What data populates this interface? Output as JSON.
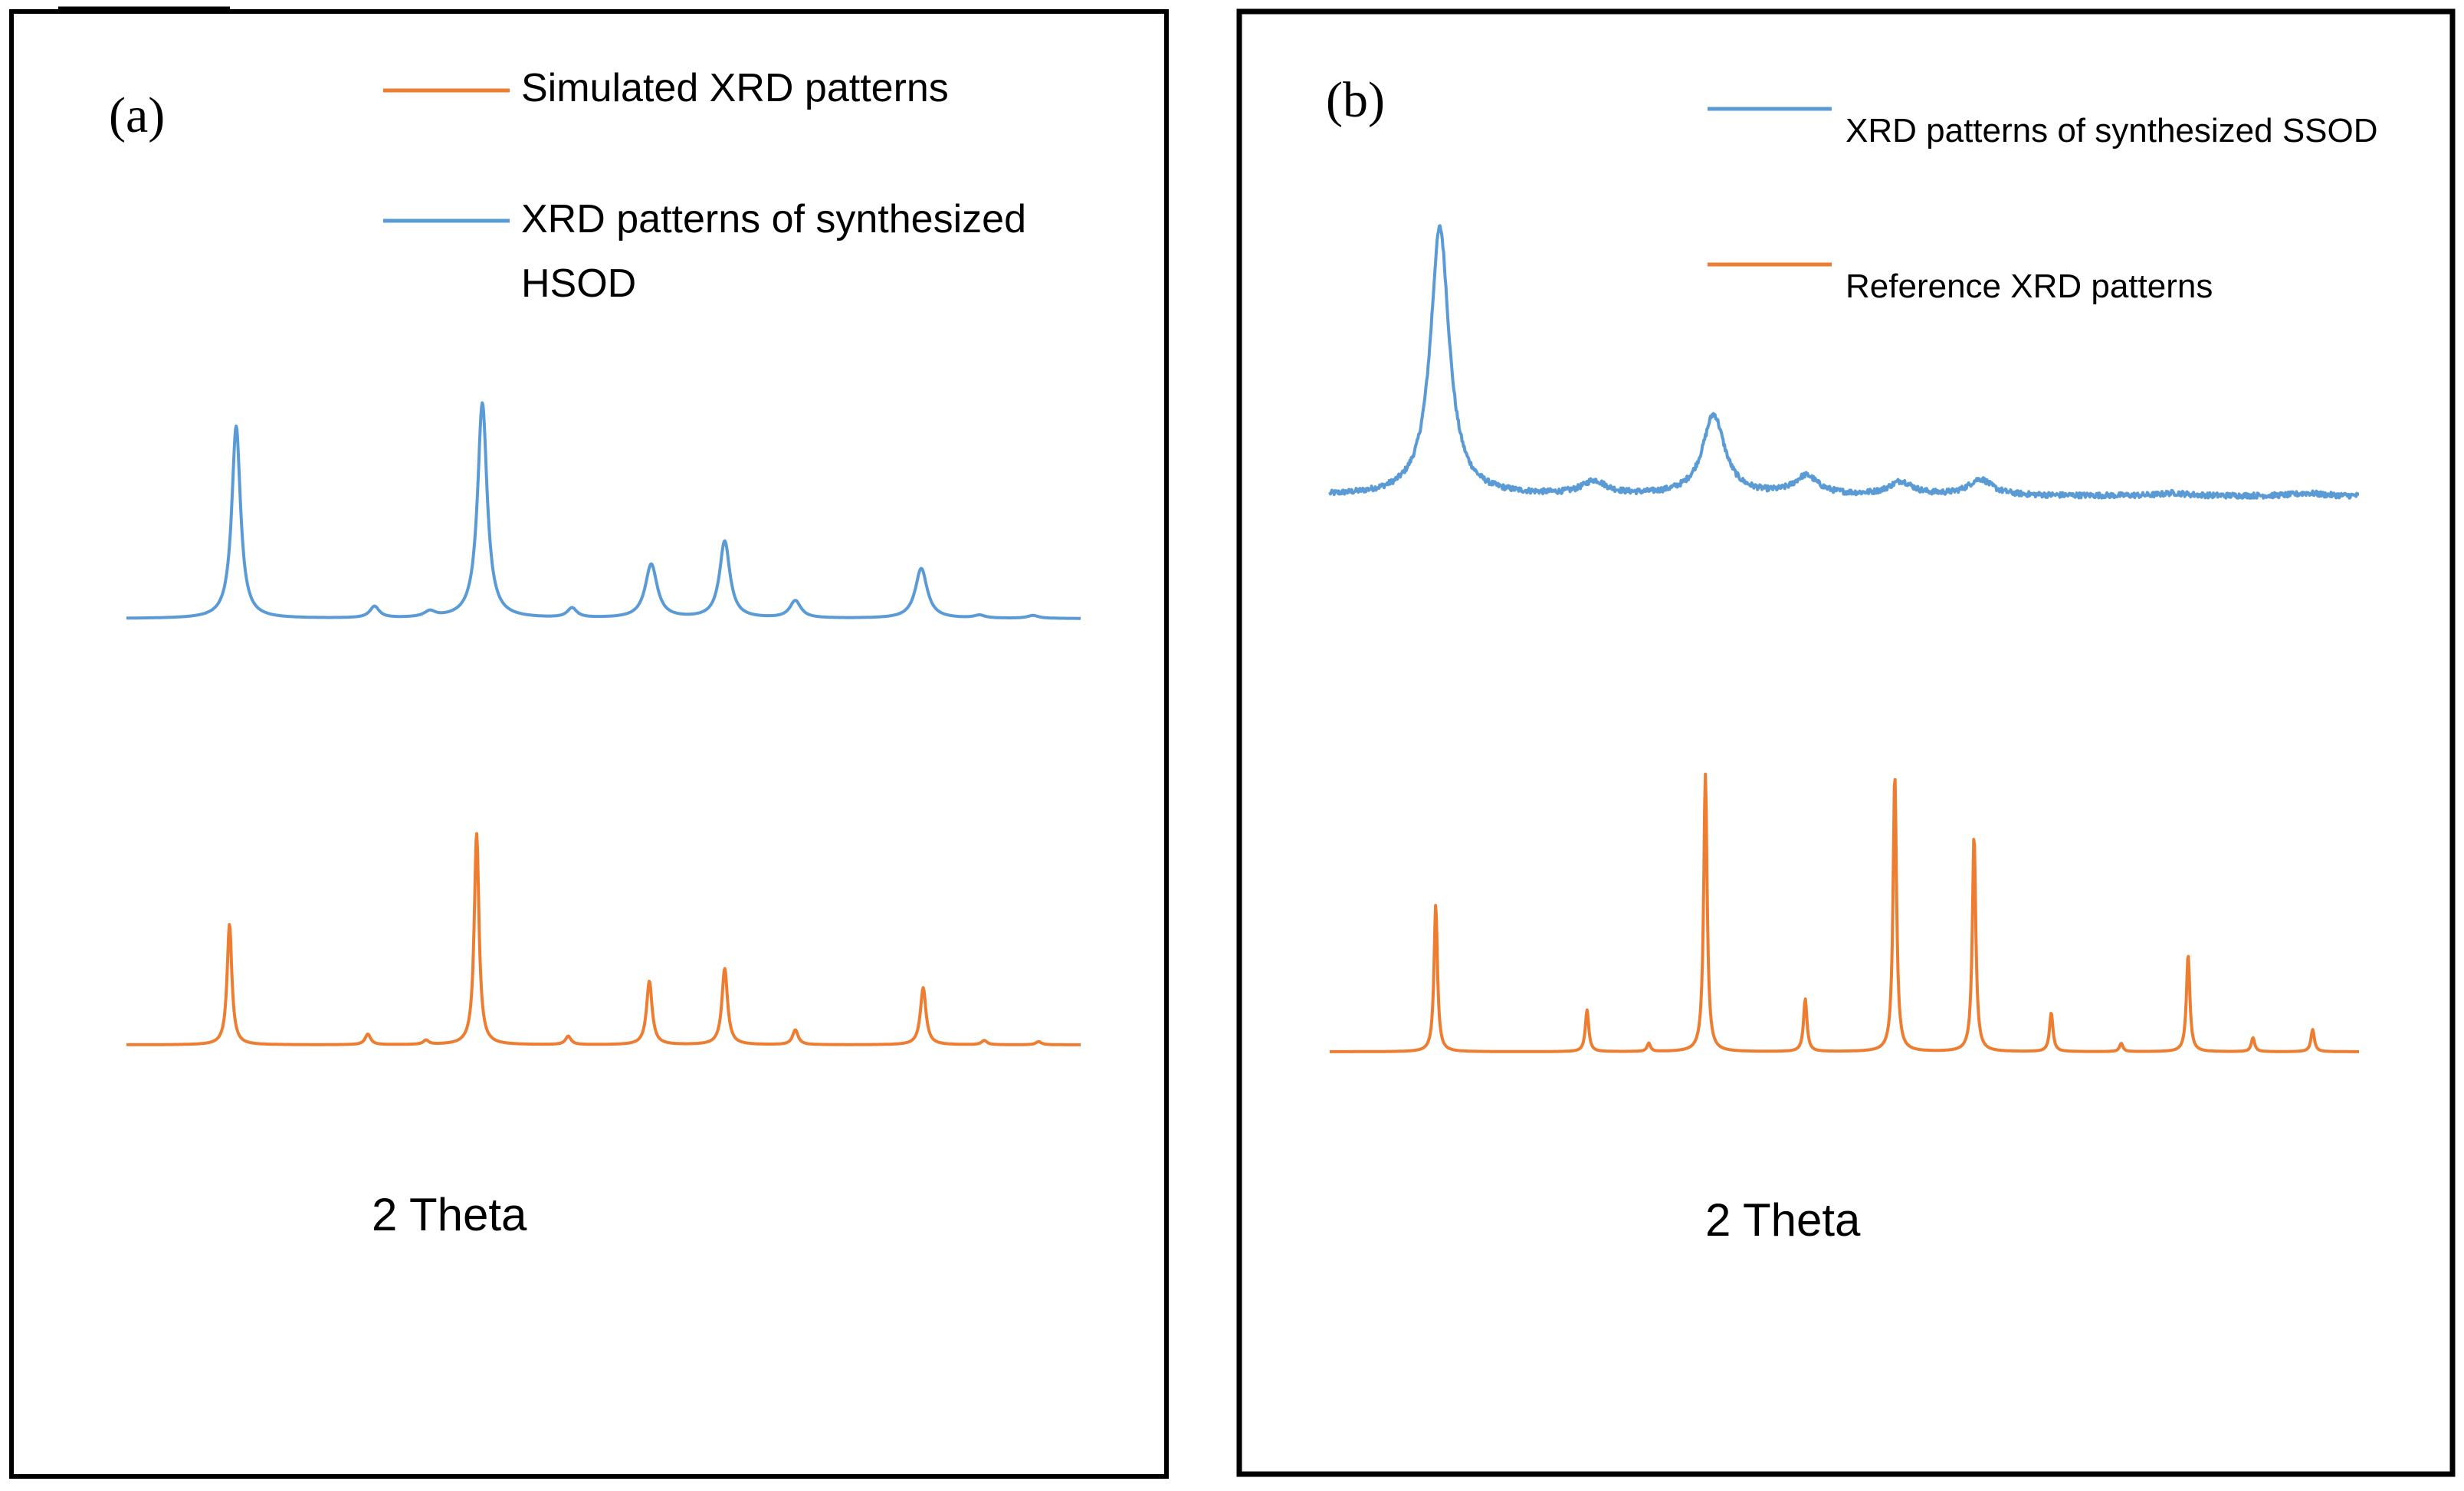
{
  "colors": {
    "blue": "#5b9bd5",
    "orange": "#ed7d31",
    "frame": "#000000"
  },
  "chart_data": [
    {
      "type": "line",
      "panel_label": "(a)",
      "title": "",
      "xlabel": "2 Theta",
      "ylabel": "",
      "xlim": [
        0,
        100
      ],
      "grid": false,
      "legend_position": "top-right",
      "legend": [
        "Simulated XRD patterns",
        "XRD patterns of synthesized HSOD"
      ],
      "series": [
        {
          "name": "XRD patterns of synthesized HSOD",
          "color": "#5b9bd5",
          "baseline": 0,
          "noise": 0.0,
          "peaks": [
            {
              "x": 11.5,
              "height": 100,
              "width": 0.55
            },
            {
              "x": 26.0,
              "height": 6,
              "width": 0.6
            },
            {
              "x": 31.8,
              "height": 3,
              "width": 0.7
            },
            {
              "x": 37.3,
              "height": 112,
              "width": 0.6
            },
            {
              "x": 46.7,
              "height": 5,
              "width": 0.6
            },
            {
              "x": 55.0,
              "height": 28,
              "width": 0.75
            },
            {
              "x": 62.7,
              "height": 40,
              "width": 0.65
            },
            {
              "x": 70.1,
              "height": 9,
              "width": 0.7
            },
            {
              "x": 83.3,
              "height": 26,
              "width": 0.75
            },
            {
              "x": 89.4,
              "height": 1.5,
              "width": 0.7
            },
            {
              "x": 95.0,
              "height": 1.5,
              "width": 0.7
            }
          ]
        },
        {
          "name": "Simulated XRD patterns",
          "color": "#ed7d31",
          "baseline": 0,
          "noise": 0.0,
          "peaks": [
            {
              "x": 10.8,
              "height": 57,
              "width": 0.3
            },
            {
              "x": 25.3,
              "height": 5,
              "width": 0.35
            },
            {
              "x": 31.4,
              "height": 2,
              "width": 0.35
            },
            {
              "x": 36.7,
              "height": 100,
              "width": 0.3
            },
            {
              "x": 46.3,
              "height": 4,
              "width": 0.35
            },
            {
              "x": 54.8,
              "height": 30,
              "width": 0.35
            },
            {
              "x": 62.7,
              "height": 36,
              "width": 0.35
            },
            {
              "x": 70.1,
              "height": 7,
              "width": 0.35
            },
            {
              "x": 83.5,
              "height": 27,
              "width": 0.35
            },
            {
              "x": 89.9,
              "height": 2,
              "width": 0.35
            },
            {
              "x": 95.6,
              "height": 1.5,
              "width": 0.35
            }
          ]
        }
      ]
    },
    {
      "type": "line",
      "panel_label": "(b)",
      "title": "",
      "xlabel": "2 Theta",
      "ylabel": "",
      "xlim": [
        0,
        100
      ],
      "grid": false,
      "legend_position": "top-right",
      "legend": [
        "XRD patterns of synthesized SSOD",
        "Reference XRD patterns"
      ],
      "series": [
        {
          "name": "XRD patterns of synthesized SSOD",
          "color": "#5b9bd5",
          "baseline": 0,
          "noise": 2.0,
          "peaks": [
            {
              "x": 10.7,
              "height": 100,
              "width": 1.1
            },
            {
              "x": 25.7,
              "height": 5,
              "width": 1.4
            },
            {
              "x": 37.3,
              "height": 30,
              "width": 1.3
            },
            {
              "x": 46.3,
              "height": 7,
              "width": 1.4
            },
            {
              "x": 55.5,
              "height": 5,
              "width": 1.4
            },
            {
              "x": 63.2,
              "height": 6,
              "width": 1.4
            },
            {
              "x": 82.0,
              "height": 1,
              "width": 1.5
            },
            {
              "x": 95.0,
              "height": 1,
              "width": 1.5
            }
          ]
        },
        {
          "name": "Reference XRD patterns",
          "color": "#ed7d31",
          "baseline": 0,
          "noise": 0.0,
          "peaks": [
            {
              "x": 10.3,
              "height": 53,
              "width": 0.2
            },
            {
              "x": 25.0,
              "height": 15,
              "width": 0.2
            },
            {
              "x": 31.0,
              "height": 3,
              "width": 0.2
            },
            {
              "x": 36.5,
              "height": 100,
              "width": 0.2
            },
            {
              "x": 46.2,
              "height": 19,
              "width": 0.2
            },
            {
              "x": 54.9,
              "height": 100,
              "width": 0.2
            },
            {
              "x": 62.6,
              "height": 78,
              "width": 0.2
            },
            {
              "x": 70.1,
              "height": 14,
              "width": 0.2
            },
            {
              "x": 76.9,
              "height": 3,
              "width": 0.2
            },
            {
              "x": 83.4,
              "height": 35,
              "width": 0.2
            },
            {
              "x": 89.7,
              "height": 5,
              "width": 0.2
            },
            {
              "x": 95.5,
              "height": 8,
              "width": 0.2
            }
          ]
        }
      ]
    }
  ]
}
